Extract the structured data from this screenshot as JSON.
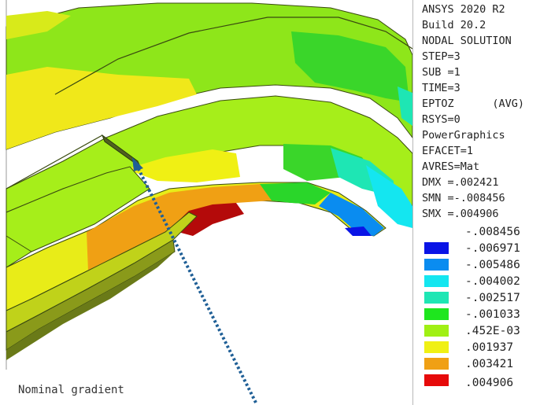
{
  "legend": {
    "info_lines": [
      "ANSYS 2020 R2",
      "Build 20.2",
      "NODAL SOLUTION",
      "STEP=3",
      "SUB =1",
      "TIME=3",
      "EPTOZ      (AVG)",
      "RSYS=0",
      "PowerGraphics",
      "EFACET=1",
      "AVRES=Mat",
      "DMX =.002421",
      "SMN =-.008456",
      "SMX =.004906"
    ],
    "contour_levels": [
      {
        "value": "-.008456",
        "color": null
      },
      {
        "value": "-.006971",
        "color": "#0a14e6"
      },
      {
        "value": "-.005486",
        "color": "#0a8cf0"
      },
      {
        "value": "-.004002",
        "color": "#14e6f0"
      },
      {
        "value": "-.002517",
        "color": "#1ee6b4"
      },
      {
        "value": "-.001033",
        "color": "#1ee61e"
      },
      {
        "value": ".452E-03",
        "color": "#a0f014"
      },
      {
        "value": ".001937",
        "color": "#f0f014"
      },
      {
        "value": ".003421",
        "color": "#f0a014"
      },
      {
        "value": ".004906",
        "color": "#e60a0a"
      }
    ]
  },
  "annotation": {
    "label": "Nominal gradient"
  },
  "colors": {
    "max_red": "#b40a0a",
    "arrow": "#1f5f96"
  }
}
